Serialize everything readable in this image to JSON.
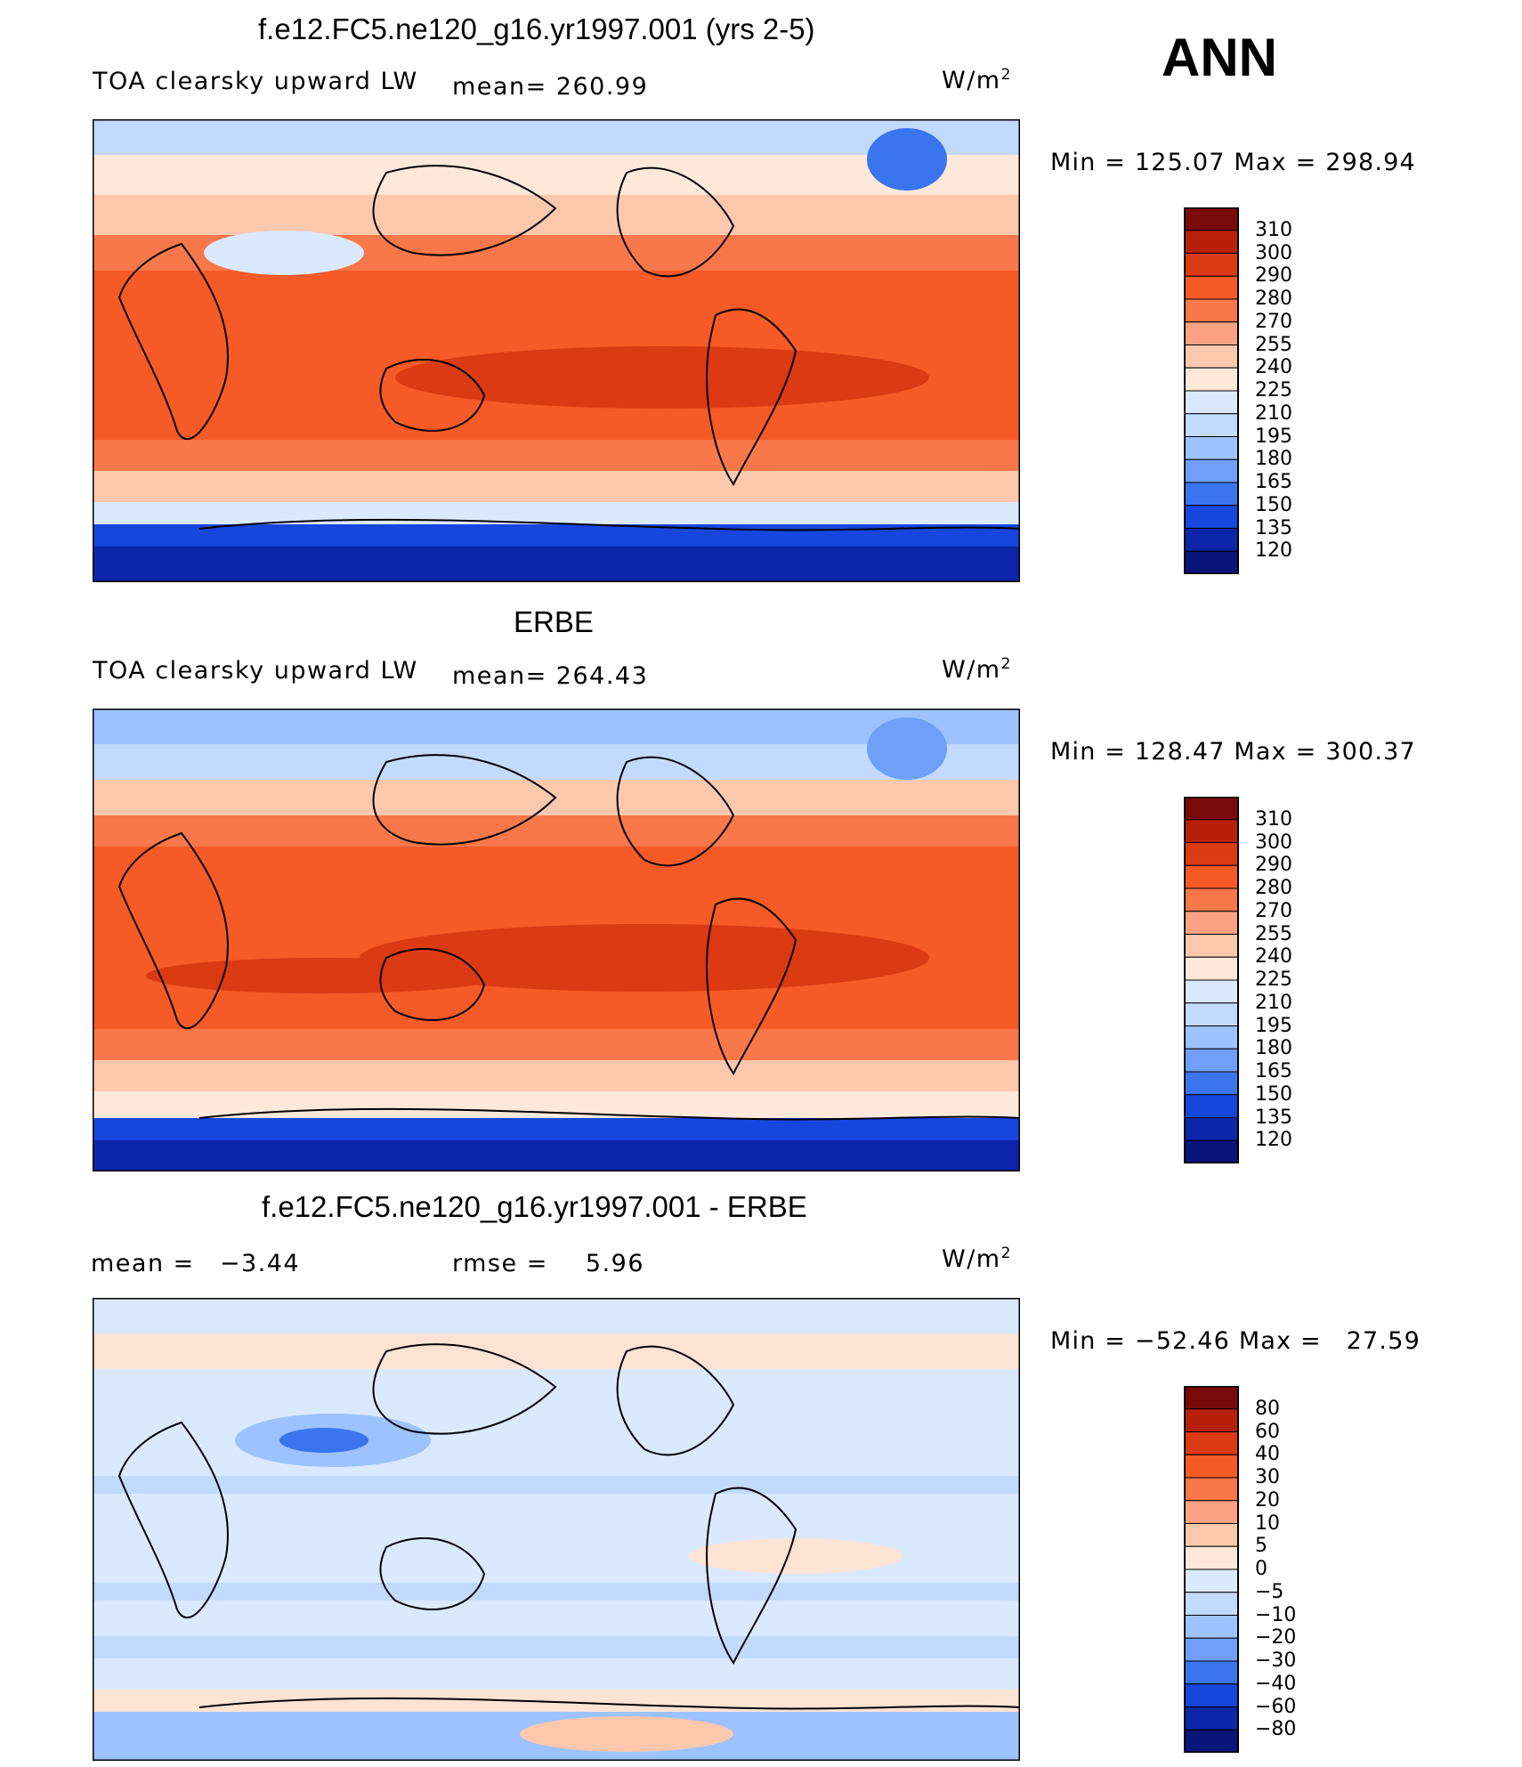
{
  "season": "ANN",
  "units": "W/m",
  "units_sup": "2",
  "panels": [
    {
      "title": "f.e12.FC5.ne120_g16.yr1997.001 (yrs 2-5)",
      "variable": "TOA clearsky upward LW",
      "mean_label": "mean=",
      "mean_value": "260.99",
      "min_label": "Min  =",
      "min_value": "125.07",
      "max_label": "Max  =",
      "max_value": "298.94",
      "colors": {
        "land": "#f4603c",
        "ocean_warm": "#f55a27",
        "pole": "#2a6af0"
      }
    },
    {
      "title": "ERBE",
      "variable": "TOA clearsky upward LW",
      "mean_label": "mean=",
      "mean_value": "264.43",
      "min_label": "Min  =",
      "min_value": "128.47",
      "max_label": "Max  =",
      "max_value": "300.37",
      "colors": {
        "land": "#f4603c",
        "ocean_warm": "#f55a27",
        "pole": "#2a6af0"
      }
    },
    {
      "title": "f.e12.FC5.ne120_g16.yr1997.001 - ERBE",
      "mean_label": "mean  =",
      "mean_value": "−3.44",
      "rmse_label": "rmse  =",
      "rmse_value": "5.96",
      "min_label": "Min  =",
      "min_value": "−52.46",
      "max_label": "Max  =",
      "max_value": "27.59",
      "colors": {
        "base": "#dbe9ff",
        "warm": "#fde3d3",
        "cool": "#9cc2ff"
      }
    }
  ],
  "chart_data": [
    {
      "type": "heatmap",
      "title": "f.e12.FC5.ne120_g16.yr1997.001 (yrs 2-5)",
      "subtitle": "TOA clearsky upward LW",
      "mean": 260.99,
      "min": 125.07,
      "max": 298.94,
      "colorbar_levels": [
        "310",
        "300",
        "290",
        "280",
        "270",
        "255",
        "240",
        "225",
        "210",
        "195",
        "180",
        "165",
        "150",
        "135",
        "120"
      ],
      "colorbar_colors": [
        "#7a0a0a",
        "#b8200c",
        "#dc3a12",
        "#f55a27",
        "#f8784a",
        "#fba381",
        "#fcc8ad",
        "#fde8da",
        "#dbe9ff",
        "#c3daff",
        "#9cc2ff",
        "#6f9ff8",
        "#3b74ef",
        "#1646de",
        "#0d25a8",
        "#0b1478"
      ]
    },
    {
      "type": "heatmap",
      "title": "ERBE",
      "subtitle": "TOA clearsky upward LW",
      "mean": 264.43,
      "min": 128.47,
      "max": 300.37,
      "colorbar_levels": [
        "310",
        "300",
        "290",
        "280",
        "270",
        "255",
        "240",
        "225",
        "210",
        "195",
        "180",
        "165",
        "150",
        "135",
        "120"
      ],
      "colorbar_colors": [
        "#7a0a0a",
        "#b8200c",
        "#dc3a12",
        "#f55a27",
        "#f8784a",
        "#fba381",
        "#fcc8ad",
        "#fde8da",
        "#dbe9ff",
        "#c3daff",
        "#9cc2ff",
        "#6f9ff8",
        "#3b74ef",
        "#1646de",
        "#0d25a8",
        "#0b1478"
      ]
    },
    {
      "type": "heatmap",
      "title": "f.e12.FC5.ne120_g16.yr1997.001 - ERBE",
      "mean": -3.44,
      "rmse": 5.96,
      "min": -52.46,
      "max": 27.59,
      "colorbar_levels": [
        "80",
        "60",
        "40",
        "30",
        "20",
        "10",
        "5",
        "0",
        "−5",
        "−10",
        "−20",
        "−30",
        "−40",
        "−60",
        "−80"
      ],
      "colorbar_colors": [
        "#7a0a0a",
        "#b8200c",
        "#dc3a12",
        "#f55a27",
        "#f8784a",
        "#fba381",
        "#fcc8ad",
        "#fde8da",
        "#dbe9ff",
        "#c3daff",
        "#9cc2ff",
        "#6f9ff8",
        "#3b74ef",
        "#1646de",
        "#0d25a8",
        "#0b1478"
      ]
    }
  ]
}
